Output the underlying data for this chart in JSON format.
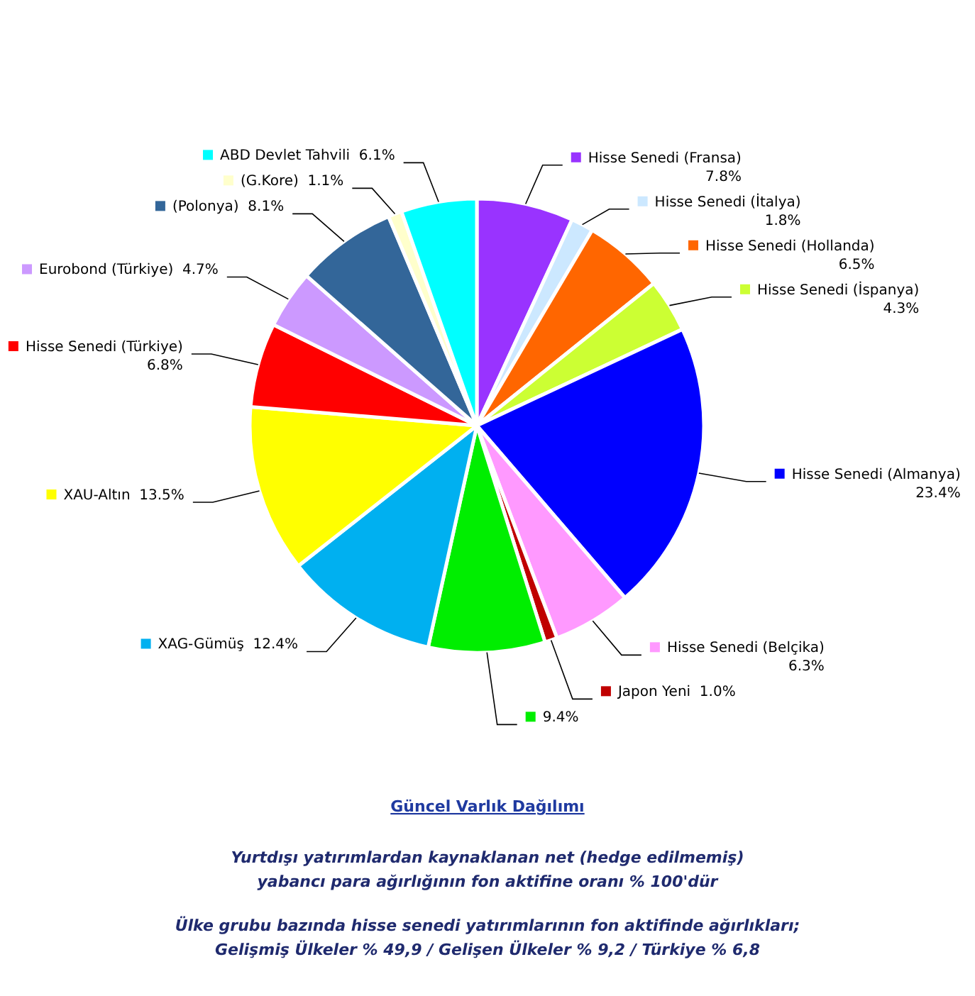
{
  "chart_data": {
    "type": "pie",
    "title": "Güncel  Varlık Dağılımı",
    "categories": [
      "Hisse Senedi (Fransa)",
      "Hisse Senedi (İtalya)",
      "Hisse Senedi (Hollanda)",
      "Hisse Senedi (İspanya)",
      "Hisse Senedi (Almanya)",
      "Hisse Senedi (Belçika)",
      "Japon Yeni",
      null,
      "XAG-Gümüş",
      "XAU-Altın",
      "Hisse Senedi (Türkiye)",
      "Eurobond (Türkiye)",
      "(Polonya)",
      "(G.Kore)",
      "ABD Devlet Tahvili"
    ],
    "values": [
      7.8,
      1.8,
      6.5,
      4.3,
      23.4,
      6.3,
      1.0,
      9.4,
      12.4,
      13.5,
      6.8,
      4.7,
      8.1,
      1.1,
      6.1
    ],
    "value_labels": [
      "7.8%",
      "1.8%",
      "6.5%",
      "4.3%",
      "23.4%",
      "6.3%",
      "1.0%",
      "9.4%",
      "12.4%",
      "13.5%",
      "6.8%",
      "4.7%",
      "8.1%",
      "1.1%",
      "6.1%"
    ],
    "colors": [
      "#9933ff",
      "#cce8ff",
      "#ff6600",
      "#ccff33",
      "#0000ff",
      "#ff99ff",
      "#c00000",
      "#00ee00",
      "#00b0f0",
      "#ffff00",
      "#ff0000",
      "#cc99ff",
      "#336699",
      "#ffffcc",
      "#00ffff"
    ],
    "legend": true,
    "annotations": [
      "Yurtdışı yatırımlardan kaynaklanan net (hedge edilmemiş)",
      "yabancı para ağırlığının fon aktifine oranı % 100'dür",
      "Ülke grubu bazında hisse senedi yatırımlarının fon aktifinde ağırlıkları;",
      "Gelişmiş Ülkeler % 49,9 / Gelişen Ülkeler % 9,2 / Türkiye % 6,8"
    ]
  }
}
